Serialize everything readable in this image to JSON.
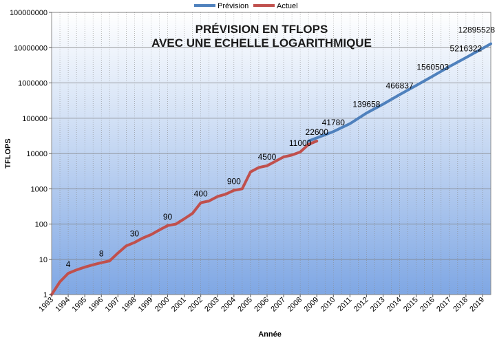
{
  "chart_data": {
    "type": "line",
    "title_line1": "PRÉVISION EN TFLOPS",
    "title_line2": "AVEC UNE ECHELLE LOGARITHMIQUE",
    "xlabel": "Année",
    "ylabel": "TFLOPS",
    "yscale": "log",
    "ylim": [
      1,
      100000000
    ],
    "xlim": [
      1993,
      2019.5
    ],
    "y_ticks": [
      1,
      10,
      100,
      1000,
      10000,
      100000,
      1000000,
      10000000,
      100000000
    ],
    "y_tick_labels": [
      "1",
      "10",
      "100",
      "1000",
      "10000",
      "100000",
      "1000000",
      "10000000",
      "100000000"
    ],
    "x_ticks": [
      1993,
      1994,
      1995,
      1996,
      1997,
      1998,
      1999,
      2000,
      2001,
      2002,
      2003,
      2004,
      2005,
      2006,
      2007,
      2008,
      2009,
      2010,
      2011,
      2012,
      2013,
      2014,
      2015,
      2016,
      2017,
      2018,
      2019
    ],
    "x_tick_labels": [
      "1993",
      "1994",
      "1995",
      "1996",
      "1997",
      "1998",
      "1999",
      "2000",
      "2001",
      "2002",
      "2003",
      "2004",
      "2005",
      "2006",
      "2007",
      "2008",
      "2009",
      "2010",
      "2011",
      "2012",
      "2013",
      "2014",
      "2015",
      "2016",
      "2017",
      "2018",
      "2019"
    ],
    "grid": true,
    "legend_position": "top",
    "series": [
      {
        "name": "Prévision",
        "color": "#4f81bd",
        "points": [
          [
            2008.5,
            22600
          ],
          [
            2010,
            41780
          ],
          [
            2011,
            70000
          ],
          [
            2012,
            139658
          ],
          [
            2013,
            250000
          ],
          [
            2014,
            466837
          ],
          [
            2015,
            850000
          ],
          [
            2016,
            1560503
          ],
          [
            2017,
            2900000
          ],
          [
            2018,
            5216322
          ],
          [
            2019.5,
            12895528
          ]
        ]
      },
      {
        "name": "Actuel",
        "color": "#c0504d",
        "points": [
          [
            1993,
            1
          ],
          [
            1993.5,
            2.3
          ],
          [
            1994,
            4
          ],
          [
            1994.5,
            5
          ],
          [
            1995,
            6
          ],
          [
            1995.5,
            7
          ],
          [
            1996,
            8
          ],
          [
            1996.5,
            9
          ],
          [
            1997,
            15
          ],
          [
            1997.5,
            24
          ],
          [
            1998,
            30
          ],
          [
            1998.5,
            40
          ],
          [
            1999,
            50
          ],
          [
            1999.5,
            68
          ],
          [
            2000,
            90
          ],
          [
            2000.5,
            100
          ],
          [
            2001,
            140
          ],
          [
            2001.5,
            200
          ],
          [
            2002,
            400
          ],
          [
            2002.5,
            450
          ],
          [
            2003,
            600
          ],
          [
            2003.5,
            700
          ],
          [
            2004,
            900
          ],
          [
            2004.5,
            1000
          ],
          [
            2005,
            3000
          ],
          [
            2005.5,
            4000
          ],
          [
            2006,
            4500
          ],
          [
            2006.5,
            6000
          ],
          [
            2007,
            8000
          ],
          [
            2007.5,
            9000
          ],
          [
            2008,
            11000
          ],
          [
            2008.5,
            18000
          ],
          [
            2009,
            22600
          ]
        ]
      }
    ],
    "annotations": [
      {
        "x": 1994,
        "y": 4,
        "label": "4"
      },
      {
        "x": 1996,
        "y": 8,
        "label": "8"
      },
      {
        "x": 1998,
        "y": 30,
        "label": "30"
      },
      {
        "x": 2000,
        "y": 90,
        "label": "90"
      },
      {
        "x": 2002,
        "y": 400,
        "label": "400"
      },
      {
        "x": 2004,
        "y": 900,
        "label": "900"
      },
      {
        "x": 2006,
        "y": 4500,
        "label": "4500"
      },
      {
        "x": 2008,
        "y": 11000,
        "label": "11000"
      },
      {
        "x": 2009,
        "y": 22600,
        "label": "22600"
      },
      {
        "x": 2010,
        "y": 41780,
        "label": "41780"
      },
      {
        "x": 2012,
        "y": 139658,
        "label": "139658"
      },
      {
        "x": 2014,
        "y": 466837,
        "label": "466837"
      },
      {
        "x": 2016,
        "y": 1560503,
        "label": "1560503"
      },
      {
        "x": 2018,
        "y": 5216322,
        "label": "5216322"
      },
      {
        "x": 2019.5,
        "y": 12895528,
        "label": "12895528"
      }
    ]
  }
}
